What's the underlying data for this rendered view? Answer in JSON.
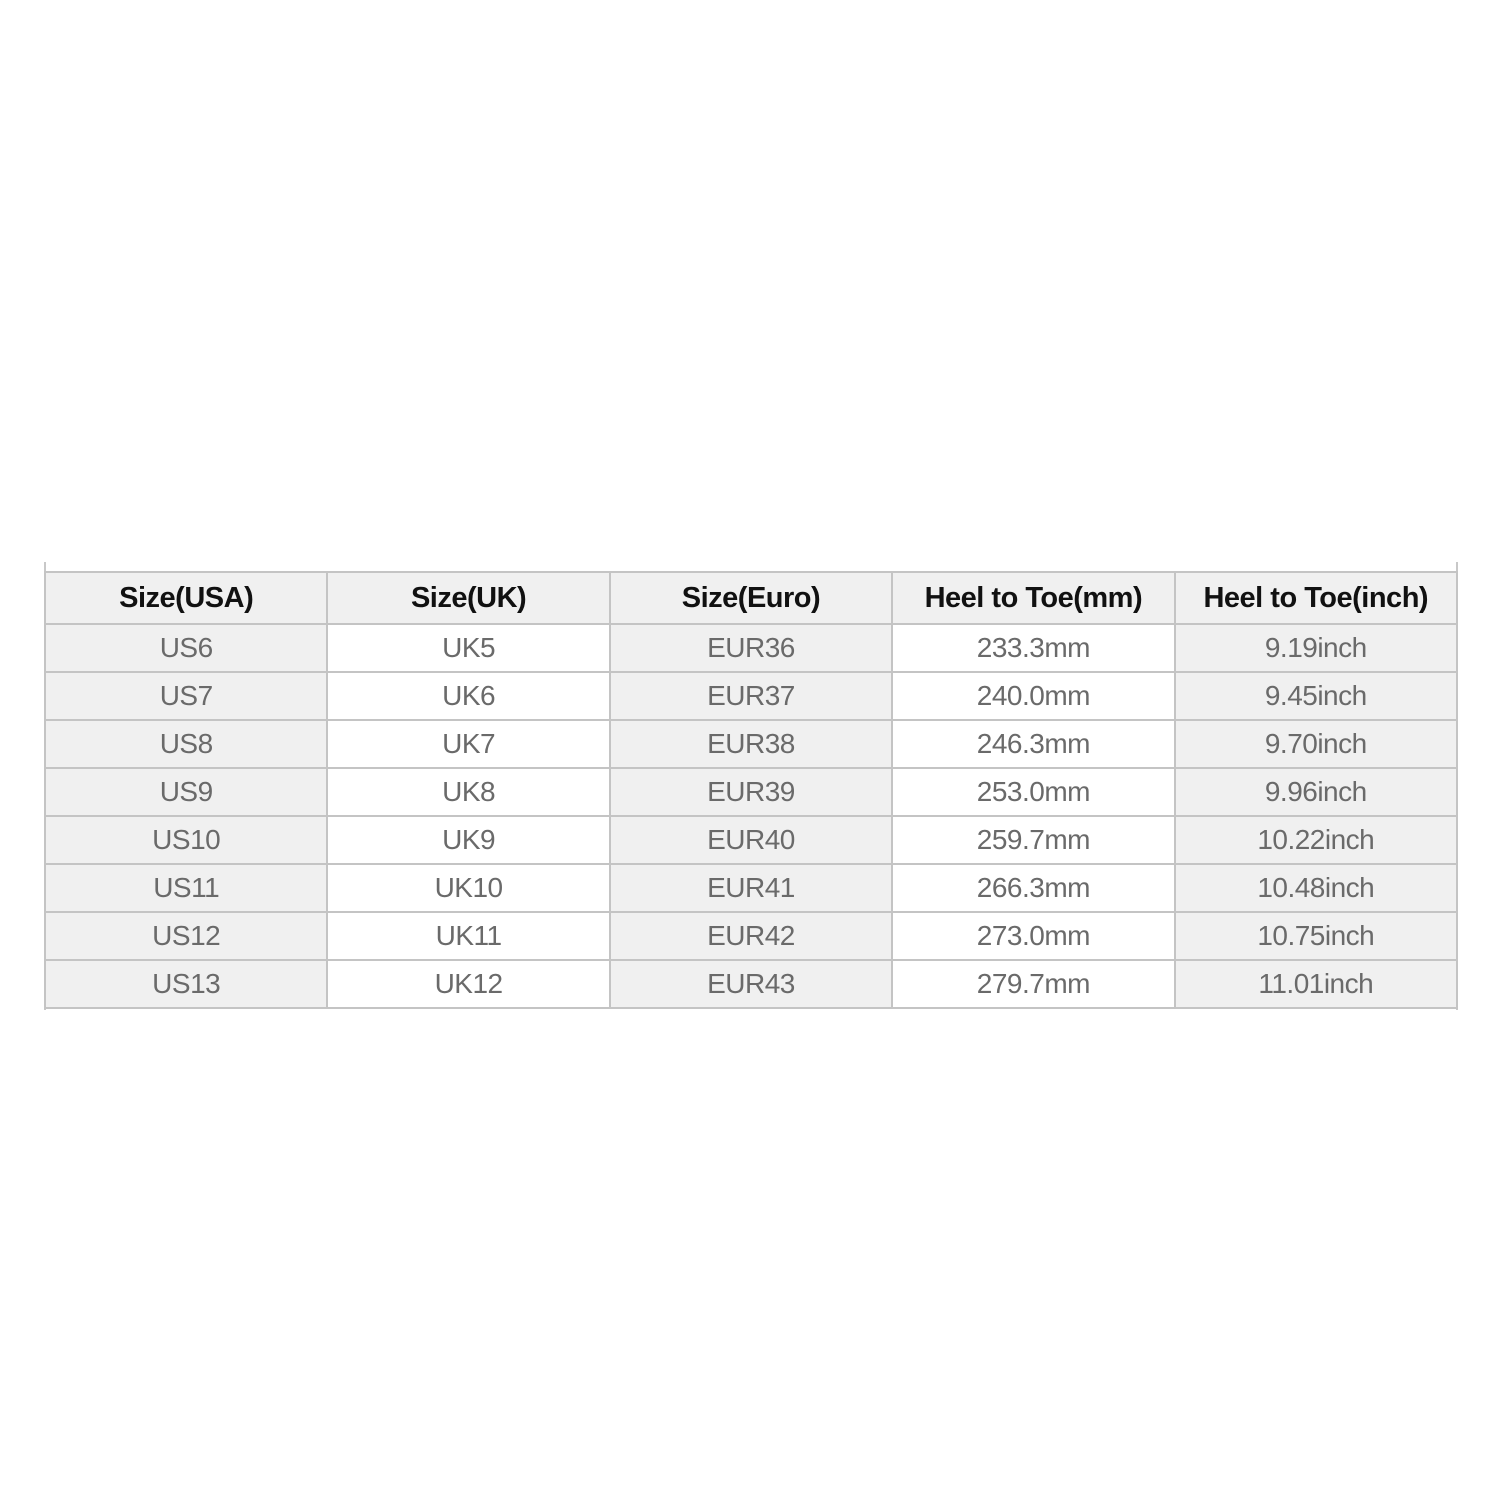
{
  "table": {
    "headers": [
      "Size(USA)",
      "Size(UK)",
      "Size(Euro)",
      "Heel to Toe(mm)",
      "Heel to Toe(inch)"
    ],
    "rows": [
      [
        "US6",
        "UK5",
        "EUR36",
        "233.3mm",
        "9.19inch"
      ],
      [
        "US7",
        "UK6",
        "EUR37",
        "240.0mm",
        "9.45inch"
      ],
      [
        "US8",
        "UK7",
        "EUR38",
        "246.3mm",
        "9.70inch"
      ],
      [
        "US9",
        "UK8",
        "EUR39",
        "253.0mm",
        "9.96inch"
      ],
      [
        "US10",
        "UK9",
        "EUR40",
        "259.7mm",
        "10.22inch"
      ],
      [
        "US11",
        "UK10",
        "EUR41",
        "266.3mm",
        "10.48inch"
      ],
      [
        "US12",
        "UK11",
        "EUR42",
        "273.0mm",
        "10.75inch"
      ],
      [
        "US13",
        "UK12",
        "EUR43",
        "279.7mm",
        "11.01inch"
      ]
    ]
  }
}
